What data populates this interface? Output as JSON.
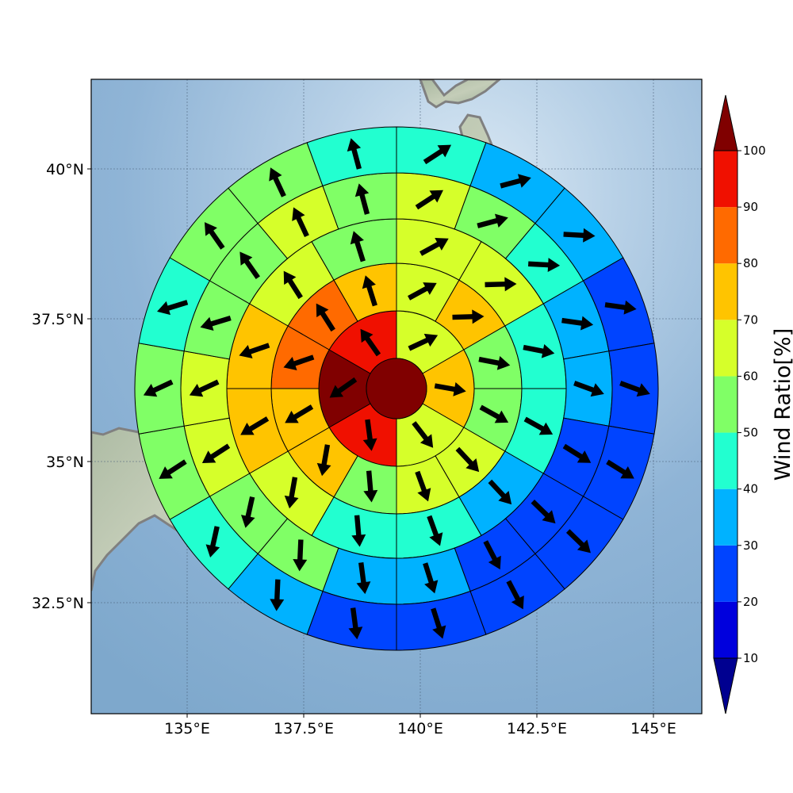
{
  "chart_data": {
    "type": "polar-sector-map",
    "colorbar_label": "Wind Ratio[%]",
    "map": {
      "lon_range": [
        133,
        146
      ],
      "lat_range": [
        30.5,
        41.5
      ],
      "x_ticks": [
        135,
        137.5,
        140,
        142.5,
        145
      ],
      "x_tick_labels": [
        "135°E",
        "137.5°E",
        "140°E",
        "142.5°E",
        "145°E"
      ],
      "y_ticks": [
        32.5,
        35,
        37.5,
        40
      ],
      "y_tick_labels": [
        "32.5°N",
        "35°N",
        "37.5°N",
        "40°N"
      ],
      "grid": true,
      "center_lon": 139.5,
      "center_lat": 36.0
    },
    "colorbar": {
      "levels": [
        10,
        20,
        30,
        40,
        50,
        60,
        70,
        80,
        90,
        100
      ],
      "tick_labels": [
        "10",
        "20",
        "30",
        "40",
        "50",
        "60",
        "70",
        "80",
        "90",
        "100"
      ],
      "colors": [
        "#0000dd",
        "#0044ff",
        "#00b2ff",
        "#22ffd0",
        "#80ff66",
        "#d6ff2a",
        "#ffc400",
        "#ff6a00",
        "#f01000"
      ],
      "under_color": "#000090",
      "over_color": "#800000"
    },
    "center_disk": {
      "value": 100
    },
    "rings": [
      {
        "ring": 1,
        "sectors": 6,
        "values": [
          66,
          77,
          67,
          93,
          100,
          96
        ]
      },
      {
        "ring": 2,
        "sectors": 12,
        "values": [
          65,
          71,
          56,
          54,
          63,
          61,
          59,
          75,
          71,
          86,
          86,
          74
        ]
      },
      {
        "ring": 3,
        "sectors": 12,
        "values": [
          61,
          65,
          45,
          44,
          35,
          44,
          41,
          65,
          72,
          75,
          63,
          55
        ]
      },
      {
        "ring": 4,
        "sectors": 18,
        "values": [
          62,
          52,
          48,
          39,
          38,
          29,
          27,
          24,
          34,
          38,
          52,
          59,
          62,
          68,
          55,
          52,
          63,
          51
        ]
      },
      {
        "ring": 5,
        "sectors": 18,
        "values": [
          45,
          38,
          31,
          28,
          22,
          21,
          22,
          22,
          21,
          26,
          34,
          45,
          56,
          58,
          48,
          56,
          58,
          43
        ]
      },
      {
        "ring": 6,
        "sectors": 24,
        "values": [
          33,
          24,
          18,
          17,
          16,
          25,
          22,
          22,
          20,
          27,
          38,
          38,
          30,
          37,
          54,
          48,
          42,
          53,
          55,
          56,
          48,
          46,
          37,
          34
        ]
      }
    ],
    "arrows": [
      {
        "sector_center_value": 100,
        "note": ""
      }
    ]
  }
}
